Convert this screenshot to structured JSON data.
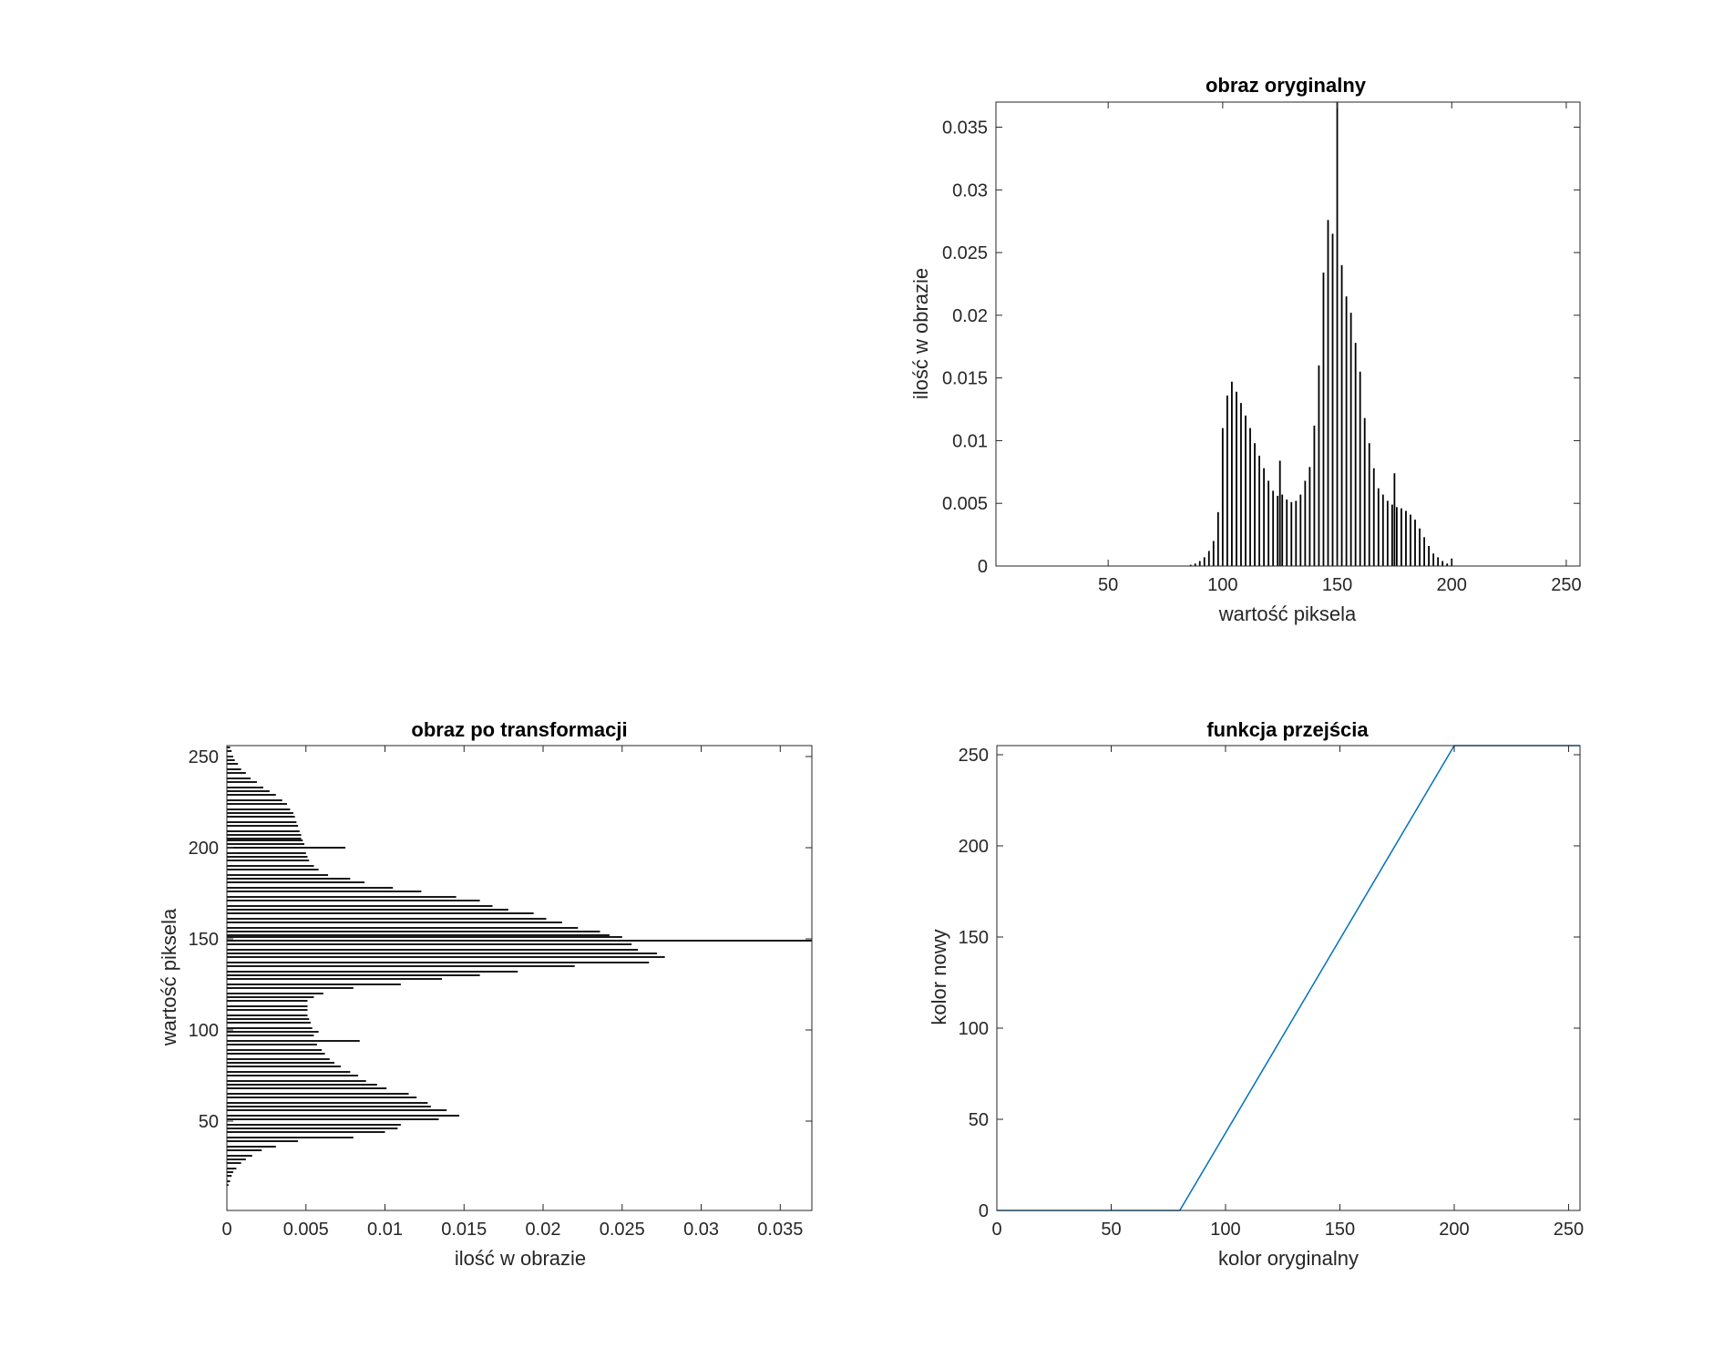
{
  "figure": {
    "background": "#ffffff",
    "axis_color": "#262626",
    "bar_color": "#000000",
    "line_color": "#0072bd"
  },
  "chart_data": [
    {
      "id": "hist-original",
      "type": "bar",
      "orientation": "vertical",
      "title": "obraz oryginalny",
      "xlabel": "wartość piksela",
      "ylabel": "ilość w obrazie",
      "xlim": [
        1,
        256
      ],
      "ylim": [
        0,
        0.037
      ],
      "xticks": [
        50,
        100,
        150,
        200,
        250
      ],
      "yticks": [
        0,
        0.005,
        0.01,
        0.015,
        0.02,
        0.025,
        0.03,
        0.035
      ],
      "ytick_labels": [
        "0",
        "0.005",
        "0.01",
        "0.015",
        "0.02",
        "0.025",
        "0.03",
        "0.035"
      ],
      "grid": false,
      "x": [
        86,
        88,
        90,
        92,
        94,
        96,
        98,
        100,
        102,
        104,
        106,
        108,
        110,
        112,
        114,
        116,
        118,
        120,
        122,
        124,
        125,
        126,
        128,
        130,
        132,
        134,
        136,
        138,
        140,
        142,
        144,
        146,
        148,
        150,
        152,
        154,
        156,
        158,
        160,
        162,
        164,
        166,
        168,
        170,
        172,
        174,
        175,
        176,
        178,
        180,
        182,
        184,
        186,
        188,
        190,
        192,
        194,
        196,
        198,
        200
      ],
      "values": [
        0.0001,
        0.0002,
        0.0004,
        0.0007,
        0.0012,
        0.002,
        0.0043,
        0.011,
        0.0136,
        0.0147,
        0.0139,
        0.013,
        0.012,
        0.011,
        0.0098,
        0.0088,
        0.0078,
        0.0068,
        0.006,
        0.0056,
        0.0084,
        0.0057,
        0.0053,
        0.0051,
        0.0052,
        0.0057,
        0.0068,
        0.0079,
        0.0112,
        0.016,
        0.0234,
        0.0276,
        0.0265,
        0.037,
        0.024,
        0.0215,
        0.0202,
        0.0178,
        0.0155,
        0.0118,
        0.0098,
        0.0078,
        0.0062,
        0.0057,
        0.0052,
        0.0049,
        0.0074,
        0.0047,
        0.0046,
        0.0044,
        0.0041,
        0.0037,
        0.003,
        0.0023,
        0.0016,
        0.001,
        0.0007,
        0.0004,
        0.0002,
        0.0006
      ]
    },
    {
      "id": "hist-transformed",
      "type": "bar",
      "orientation": "horizontal",
      "title": "obraz po transformacji",
      "xlabel": "ilość w obrazie",
      "ylabel": "wartość piksela",
      "xlim": [
        0,
        0.037
      ],
      "ylim": [
        1,
        256
      ],
      "xticks": [
        0,
        0.005,
        0.01,
        0.015,
        0.02,
        0.025,
        0.03,
        0.035
      ],
      "xtick_labels": [
        "0",
        "0.005",
        "0.01",
        "0.015",
        "0.02",
        "0.025",
        "0.03",
        "0.035"
      ],
      "yticks": [
        50,
        100,
        150,
        200,
        250
      ],
      "grid": false,
      "y": [
        15,
        17,
        20,
        22,
        24,
        27,
        29,
        31,
        34,
        36,
        39,
        41,
        44,
        46,
        48,
        51,
        53,
        56,
        58,
        60,
        63,
        65,
        68,
        70,
        72,
        75,
        77,
        80,
        82,
        84,
        87,
        89,
        92,
        94,
        97,
        99,
        101,
        104,
        106,
        108,
        111,
        113,
        116,
        118,
        120,
        123,
        125,
        128,
        130,
        132,
        135,
        137,
        140,
        142,
        144,
        147,
        149,
        151,
        152,
        154,
        156,
        159,
        161,
        164,
        166,
        168,
        171,
        173,
        176,
        178,
        181,
        183,
        185,
        188,
        190,
        193,
        195,
        197,
        200,
        202,
        204,
        205,
        207,
        209,
        212,
        214,
        217,
        219,
        221,
        224,
        226,
        229,
        231,
        233,
        236,
        238,
        241,
        243,
        246,
        248,
        250,
        253,
        255
      ],
      "values": [
        0.0001,
        0.0002,
        0.0003,
        0.0004,
        0.0006,
        0.0009,
        0.0012,
        0.0016,
        0.0022,
        0.0031,
        0.0045,
        0.008,
        0.01,
        0.0108,
        0.011,
        0.0134,
        0.0147,
        0.0139,
        0.0129,
        0.0127,
        0.012,
        0.0115,
        0.0101,
        0.0095,
        0.0088,
        0.0083,
        0.0078,
        0.0072,
        0.0068,
        0.0065,
        0.0062,
        0.006,
        0.0057,
        0.0084,
        0.0055,
        0.0058,
        0.0054,
        0.0053,
        0.0052,
        0.0051,
        0.0051,
        0.0051,
        0.0051,
        0.0055,
        0.0061,
        0.008,
        0.011,
        0.0136,
        0.016,
        0.0184,
        0.022,
        0.0267,
        0.0277,
        0.0272,
        0.026,
        0.0256,
        0.037,
        0.025,
        0.0242,
        0.0236,
        0.0222,
        0.0212,
        0.0202,
        0.0194,
        0.0178,
        0.0168,
        0.016,
        0.0145,
        0.0123,
        0.0105,
        0.0087,
        0.0078,
        0.0064,
        0.0058,
        0.0055,
        0.0052,
        0.0051,
        0.005,
        0.0075,
        0.0049,
        0.0048,
        0.0047,
        0.0047,
        0.0046,
        0.0045,
        0.0044,
        0.0043,
        0.0042,
        0.004,
        0.0038,
        0.0035,
        0.0031,
        0.0027,
        0.0023,
        0.0019,
        0.0015,
        0.0012,
        0.0009,
        0.0007,
        0.0005,
        0.0004,
        0.0003,
        0.0002
      ]
    },
    {
      "id": "transfer-function",
      "type": "line",
      "title": "funkcja przejścia",
      "xlabel": "kolor oryginalny",
      "ylabel": "kolor nowy",
      "xlim": [
        0,
        255
      ],
      "ylim": [
        0,
        255
      ],
      "xticks": [
        0,
        50,
        100,
        150,
        200,
        250
      ],
      "yticks": [
        0,
        50,
        100,
        150,
        200,
        250
      ],
      "grid": false,
      "x": [
        0,
        80,
        200,
        255
      ],
      "y": [
        0,
        0,
        255,
        255
      ]
    }
  ]
}
